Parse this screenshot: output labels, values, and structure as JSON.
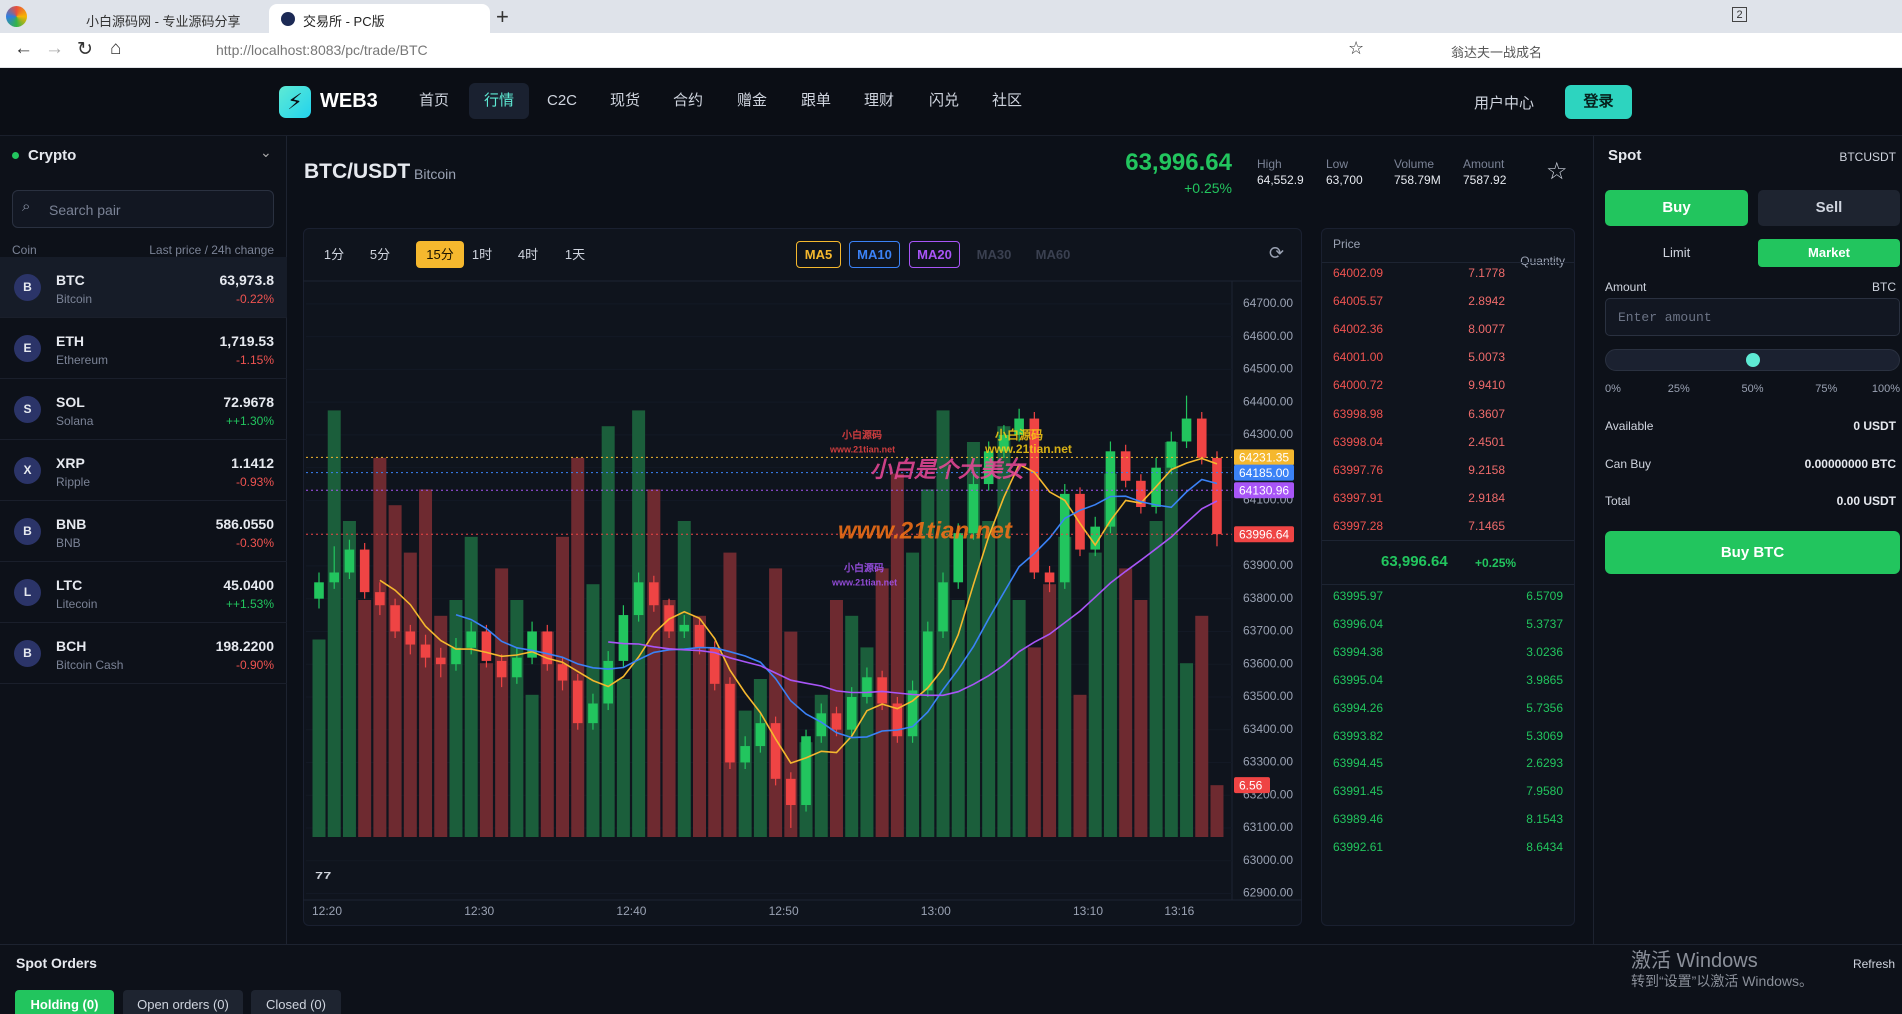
{
  "browser": {
    "tabs": [
      "小白源码网 - 专业源码分享",
      "交易所 - PC版"
    ],
    "url_host": "http://localhost",
    "url_rest": ":8083/pc/trade/BTC",
    "search": "翁达夫一战成名",
    "badge": "2"
  },
  "nav": {
    "logo": "WEB3",
    "items": [
      "首页",
      "行情",
      "C2C",
      "现货",
      "合约",
      "赠金",
      "跟单",
      "理财",
      "闪兑",
      "社区"
    ],
    "active": 1,
    "user": "用户中心",
    "login": "登录"
  },
  "sidebar": {
    "title": "Crypto",
    "search": "Search pair",
    "col_coin": "Coin",
    "col_price": "Last price / 24h change",
    "coins": [
      {
        "icon": "B",
        "symbol": "BTC",
        "name": "Bitcoin",
        "price": "63,973.8",
        "change": "-0.22%"
      },
      {
        "icon": "E",
        "symbol": "ETH",
        "name": "Ethereum",
        "price": "1,719.53",
        "change": "-1.15%"
      },
      {
        "icon": "S",
        "symbol": "SOL",
        "name": "Solana",
        "price": "72.9678",
        "change": "++1.30%"
      },
      {
        "icon": "X",
        "symbol": "XRP",
        "name": "Ripple",
        "price": "1.1412",
        "change": "-0.93%"
      },
      {
        "icon": "B",
        "symbol": "BNB",
        "name": "BNB",
        "price": "586.0550",
        "change": "-0.30%"
      },
      {
        "icon": "L",
        "symbol": "LTC",
        "name": "Litecoin",
        "price": "45.0400",
        "change": "++1.53%"
      },
      {
        "icon": "B",
        "symbol": "BCH",
        "name": "Bitcoin Cash",
        "price": "198.2200",
        "change": "-0.90%"
      }
    ]
  },
  "pair": {
    "symbol": "BTC/USDT",
    "name": "Bitcoin",
    "price": "63,996.64",
    "change": "+0.25%",
    "stats": [
      {
        "label": "High",
        "value": "64,552.9"
      },
      {
        "label": "Low",
        "value": "63,700"
      },
      {
        "label": "Volume",
        "value": "758.79M"
      },
      {
        "label": "Amount",
        "value": "7587.92"
      }
    ]
  },
  "toolbar": {
    "intervals": [
      "1分",
      "5分",
      "15分",
      "1时",
      "4时",
      "1天"
    ],
    "active": 2,
    "ma": [
      {
        "name": "MA5",
        "period": 5,
        "color": "#f5b82e",
        "on": true
      },
      {
        "name": "MA10",
        "period": 10,
        "color": "#3b82f6",
        "on": true
      },
      {
        "name": "MA20",
        "period": 20,
        "color": "#a855f7",
        "on": true
      },
      {
        "name": "MA30",
        "period": 30,
        "color": "#3a4050",
        "on": false
      },
      {
        "name": "MA60",
        "period": 60,
        "color": "#3a4050",
        "on": false
      }
    ]
  },
  "chart_data": {
    "type": "candlestick",
    "x": [
      "12:20",
      null,
      null,
      null,
      null,
      null,
      null,
      null,
      null,
      null,
      "12:30",
      null,
      null,
      null,
      null,
      null,
      null,
      null,
      null,
      null,
      "12:40",
      null,
      null,
      null,
      null,
      null,
      null,
      null,
      null,
      null,
      "12:50",
      null,
      null,
      null,
      null,
      null,
      null,
      null,
      null,
      null,
      "13:00",
      null,
      null,
      null,
      null,
      null,
      null,
      null,
      null,
      null,
      "13:10",
      null,
      null,
      null,
      null,
      null,
      "13:16",
      null,
      null,
      null
    ],
    "open": [
      63800,
      63850,
      63880,
      63950,
      63820,
      63780,
      63700,
      63660,
      63620,
      63600,
      63650,
      63700,
      63610,
      63560,
      63620,
      63700,
      63600,
      63550,
      63420,
      63480,
      63610,
      63750,
      63850,
      63780,
      63700,
      63720,
      63650,
      63540,
      63300,
      63350,
      63420,
      63250,
      63170,
      63380,
      63450,
      63400,
      63500,
      63560,
      63480,
      63380,
      63520,
      63700,
      63850,
      64000,
      64150,
      64250,
      64300,
      64350,
      63880,
      63850,
      64120,
      63950,
      64020,
      64250,
      64160,
      64080,
      64200,
      64280,
      64350,
      64230
    ],
    "high": [
      63880,
      63960,
      63980,
      63970,
      63850,
      63800,
      63720,
      63690,
      63650,
      63680,
      63730,
      63720,
      63630,
      63650,
      63730,
      63720,
      63620,
      63570,
      63510,
      63640,
      63780,
      63880,
      63870,
      63800,
      63750,
      63740,
      63670,
      63560,
      63380,
      63450,
      63440,
      63270,
      63400,
      63480,
      63470,
      63530,
      63590,
      63580,
      63500,
      63550,
      63730,
      63880,
      64030,
      64180,
      64280,
      64330,
      64380,
      64370,
      63900,
      64150,
      64140,
      64050,
      64280,
      64270,
      64180,
      64230,
      64310,
      64420,
      64370,
      64250
    ],
    "low": [
      63770,
      63830,
      63860,
      63800,
      63750,
      63680,
      63630,
      63590,
      63560,
      63580,
      63630,
      63590,
      63530,
      63540,
      63600,
      63580,
      63520,
      63400,
      63400,
      63460,
      63590,
      63730,
      63760,
      63680,
      63680,
      63630,
      63520,
      63280,
      63280,
      63330,
      63230,
      63100,
      63150,
      63360,
      63380,
      63380,
      63480,
      63460,
      63360,
      63360,
      63500,
      63680,
      63830,
      63980,
      64130,
      64230,
      64280,
      63860,
      63820,
      63830,
      63930,
      63930,
      64000,
      64140,
      64060,
      64060,
      64180,
      64260,
      64210,
      63960
    ],
    "close": [
      63850,
      63880,
      63950,
      63820,
      63780,
      63700,
      63660,
      63620,
      63600,
      63650,
      63700,
      63610,
      63560,
      63620,
      63700,
      63600,
      63550,
      63420,
      63480,
      63610,
      63750,
      63850,
      63780,
      63700,
      63720,
      63650,
      63540,
      63300,
      63350,
      63420,
      63250,
      63170,
      63380,
      63450,
      63400,
      63500,
      63560,
      63480,
      63380,
      63520,
      63700,
      63850,
      64000,
      64150,
      64250,
      64300,
      64350,
      63880,
      63850,
      64120,
      63950,
      64020,
      64250,
      64160,
      64080,
      64200,
      64280,
      64350,
      64230,
      63997
    ],
    "volume": [
      25,
      54,
      40,
      30,
      48,
      42,
      36,
      44,
      28,
      30,
      38,
      22,
      34,
      30,
      18,
      26,
      38,
      48,
      32,
      52,
      20,
      54,
      44,
      30,
      40,
      28,
      24,
      36,
      16,
      20,
      34,
      26,
      12,
      18,
      30,
      28,
      24,
      34,
      46,
      36,
      44,
      54,
      30,
      50,
      40,
      52,
      30,
      24,
      32,
      38,
      18,
      36,
      46,
      34,
      30,
      40,
      50,
      22,
      28,
      6.56
    ],
    "up_color": "#22c55e",
    "down_color": "#ef4444",
    "vol_up_color": "#1b5e3b",
    "vol_down_color": "#6e2a30",
    "ylim": [
      62880,
      64770
    ],
    "yticks": [
      {
        "value": 62900,
        "label": "62900.00"
      },
      {
        "value": 63000,
        "label": "63000.00"
      },
      {
        "value": 63100,
        "label": "63100.00"
      },
      {
        "value": 63200,
        "label": "63200.00"
      },
      {
        "value": 63300,
        "label": "63300.00"
      },
      {
        "value": 63400,
        "label": "63400.00"
      },
      {
        "value": 63500,
        "label": "63500.00"
      },
      {
        "value": 63600,
        "label": "63600.00"
      },
      {
        "value": 63700,
        "label": "63700.00"
      },
      {
        "value": 63800,
        "label": "63800.00"
      },
      {
        "value": 63900,
        "label": "63900.00"
      },
      {
        "value": 64000,
        "label": "64000.00"
      },
      {
        "value": 64100,
        "label": "64100.00"
      },
      {
        "value": 64200,
        "label": "64200.00"
      },
      {
        "value": 64300,
        "label": "64300.00"
      },
      {
        "value": 64400,
        "label": "64400.00"
      },
      {
        "value": 64500,
        "label": "64500.00"
      },
      {
        "value": 64600,
        "label": "64600.00"
      },
      {
        "value": 64700,
        "label": "64700.00"
      }
    ],
    "price_tags": [
      {
        "value": 64231.35,
        "label": "64231.35",
        "color": "#f5b82e"
      },
      {
        "value": 64185.0,
        "label": "64185.00",
        "color": "#3b82f6"
      },
      {
        "value": 64130.96,
        "label": "64130.96",
        "color": "#a855f7"
      },
      {
        "value": 63996.64,
        "label": "63996.64",
        "color": "#ef4444"
      }
    ],
    "watermarks": [
      "小白是个大美女",
      "小白源码",
      "www.21tian.net",
      "www.21tian.net",
      "小白源码",
      "www.21tian.net",
      "小白源码",
      "www.21tian.net"
    ]
  },
  "orderbook": {
    "col_price": "Price",
    "col_qty": "Quantity",
    "asks": [
      [
        "64002.09",
        "7.1778"
      ],
      [
        "64005.57",
        "2.8942"
      ],
      [
        "64002.36",
        "8.0077"
      ],
      [
        "64001.00",
        "5.0073"
      ],
      [
        "64000.72",
        "9.9410"
      ],
      [
        "63998.98",
        "6.3607"
      ],
      [
        "63998.04",
        "2.4501"
      ],
      [
        "63997.76",
        "9.2158"
      ],
      [
        "63997.91",
        "2.9184"
      ],
      [
        "63997.28",
        "7.1465"
      ]
    ],
    "mid_price": "63,996.64",
    "mid_change": "+0.25%",
    "bids": [
      [
        "63995.97",
        "6.5709"
      ],
      [
        "63996.04",
        "5.3737"
      ],
      [
        "63994.38",
        "3.0236"
      ],
      [
        "63995.04",
        "3.9865"
      ],
      [
        "63994.26",
        "5.7356"
      ],
      [
        "63993.82",
        "5.3069"
      ],
      [
        "63994.45",
        "2.6293"
      ],
      [
        "63991.45",
        "7.9580"
      ],
      [
        "63989.46",
        "8.1543"
      ],
      [
        "63992.61",
        "8.6434"
      ]
    ]
  },
  "spot": {
    "title": "Spot",
    "pair": "BTCUSDT",
    "buy": "Buy",
    "sell": "Sell",
    "limit": "Limit",
    "market": "Market",
    "amount": "Amount",
    "unit": "BTC",
    "placeholder": "Enter amount",
    "slider_labels": [
      "0%",
      "25%",
      "50%",
      "75%",
      "100%"
    ],
    "slider_value": 50,
    "rows": [
      {
        "label": "Available",
        "value": "0 USDT"
      },
      {
        "label": "Can Buy",
        "value": "0.00000000 BTC"
      },
      {
        "label": "Total",
        "value": "0.00 USDT"
      }
    ],
    "submit": "Buy BTC"
  },
  "orders": {
    "title": "Spot Orders",
    "tabs": [
      "Holding (0)",
      "Open orders (0)",
      "Closed (0)"
    ],
    "refresh": "Refresh"
  },
  "windows": {
    "line1": "激活 Windows",
    "line2": "转到“设置”以激活 Windows。"
  }
}
